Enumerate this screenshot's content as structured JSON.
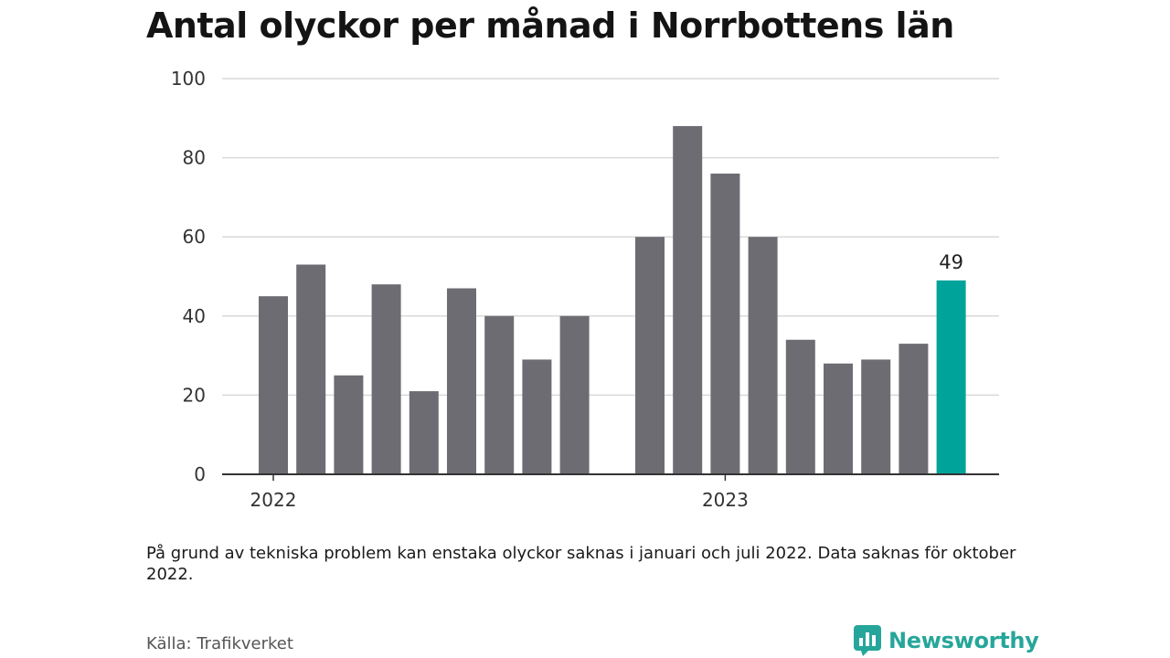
{
  "title": "Antal olyckor per månad i Norrbottens län",
  "note": "På grund av tekniska problem kan enstaka olyckor saknas i januari och juli 2022. Data saknas för oktober 2022.",
  "source": "Källa: Trafikverket",
  "brand": {
    "name": "Newsworthy",
    "icon": "newsworthy-logo-icon"
  },
  "colors": {
    "bar": "#6e6c73",
    "highlight": "#00a39a",
    "grid": "#d9d9d9",
    "axis": "#333333",
    "brand": "#26a69a"
  },
  "chart_data": {
    "type": "bar",
    "categories": [
      "2022-01",
      "2022-02",
      "2022-03",
      "2022-04",
      "2022-05",
      "2022-06",
      "2022-07",
      "2022-08",
      "2022-09",
      "2022-10",
      "2022-11",
      "2022-12",
      "2023-01",
      "2023-02",
      "2023-03",
      "2023-04",
      "2023-05",
      "2023-06",
      "2023-07"
    ],
    "values": [
      45,
      53,
      25,
      48,
      21,
      47,
      40,
      29,
      40,
      null,
      60,
      88,
      76,
      60,
      34,
      28,
      29,
      33,
      49
    ],
    "highlight_index": 18,
    "data_labels": [
      {
        "index": 18,
        "text": "49"
      }
    ],
    "xticks": [
      {
        "index": 0,
        "label": "2022"
      },
      {
        "index": 12,
        "label": "2023"
      }
    ],
    "yticks": [
      0,
      20,
      40,
      60,
      80,
      100
    ],
    "ylim": [
      0,
      100
    ],
    "grid": true,
    "legend": "none"
  }
}
